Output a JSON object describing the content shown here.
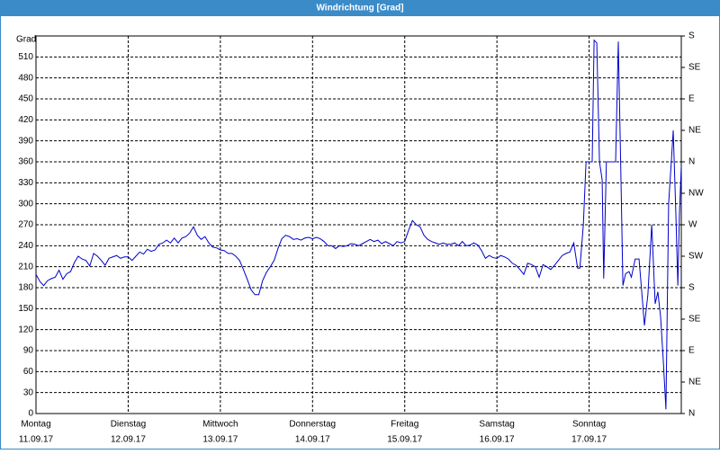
{
  "chart_data": {
    "type": "line",
    "title": "Windrichtung [Grad]",
    "ylabel": "Grad",
    "xlim": [
      0,
      168
    ],
    "ylim": [
      0,
      540
    ],
    "y2lim": [
      0,
      540
    ],
    "grid": true,
    "xticks": [
      {
        "value": 0,
        "label": "Montag",
        "date": "11.09.17"
      },
      {
        "value": 24,
        "label": "Dienstag",
        "date": "12.09.17"
      },
      {
        "value": 48,
        "label": "Mittwoch",
        "date": "13.09.17"
      },
      {
        "value": 72,
        "label": "Donnerstag",
        "date": "14.09.17"
      },
      {
        "value": 96,
        "label": "Freitag",
        "date": "15.09.17"
      },
      {
        "value": 120,
        "label": "Samstag",
        "date": "16.09.17"
      },
      {
        "value": 144,
        "label": "Sonntag",
        "date": "17.09.17"
      }
    ],
    "yticks": [
      0,
      30,
      60,
      90,
      120,
      150,
      180,
      210,
      240,
      270,
      300,
      330,
      360,
      390,
      420,
      450,
      480,
      510
    ],
    "y2ticks": [
      {
        "value": 0,
        "label": "N"
      },
      {
        "value": 45,
        "label": "NE"
      },
      {
        "value": 90,
        "label": "E"
      },
      {
        "value": 135,
        "label": "SE"
      },
      {
        "value": 180,
        "label": "S"
      },
      {
        "value": 225,
        "label": "SW"
      },
      {
        "value": 270,
        "label": "W"
      },
      {
        "value": 315,
        "label": "NW"
      },
      {
        "value": 360,
        "label": "N"
      },
      {
        "value": 405,
        "label": "NE"
      },
      {
        "value": 450,
        "label": "E"
      },
      {
        "value": 495,
        "label": "SE"
      },
      {
        "value": 540,
        "label": "S"
      }
    ],
    "x": [
      0,
      1,
      2,
      3,
      4,
      5,
      6,
      7,
      8,
      9,
      10,
      11,
      12,
      13,
      14,
      15,
      16,
      17,
      18,
      19,
      20,
      21,
      22,
      23,
      24,
      25,
      26,
      27,
      28,
      29,
      30,
      31,
      32,
      33,
      34,
      35,
      36,
      37,
      38,
      39,
      40,
      41,
      42,
      43,
      44,
      45,
      46,
      47,
      48,
      49,
      50,
      51,
      52,
      53,
      54,
      55,
      56,
      57,
      58,
      59,
      60,
      61,
      62,
      63,
      64,
      65,
      66,
      67,
      68,
      69,
      70,
      71,
      72,
      73,
      74,
      75,
      76,
      77,
      78,
      79,
      80,
      81,
      82,
      83,
      84,
      85,
      86,
      87,
      88,
      89,
      90,
      91,
      92,
      93,
      94,
      95,
      96,
      97,
      98,
      99,
      100,
      101,
      102,
      103,
      104,
      105,
      106,
      107,
      108,
      109,
      110,
      111,
      112,
      113,
      114,
      115,
      116,
      117,
      118,
      119,
      120,
      121,
      122,
      123,
      124,
      125,
      126,
      127,
      128,
      129,
      130,
      131,
      132,
      133,
      134,
      135,
      136,
      137,
      138,
      139,
      140,
      141,
      141.6,
      142.5,
      143.2,
      144.8,
      145.3,
      146,
      146.7,
      147.4,
      147.8,
      148.5,
      150.9,
      151.6,
      152.3,
      152.8,
      153.5,
      154.4,
      155,
      156,
      157,
      158,
      158.4,
      159.3,
      160.3,
      161.2,
      161.9,
      162.6,
      163.3,
      164,
      164.7,
      165.4,
      165.9,
      166.6,
      167.1,
      167.5,
      168
    ],
    "series": [
      {
        "name": "Windrichtung",
        "color": "#0000cc",
        "values": [
          199,
          189,
          183,
          190,
          193,
          195,
          205,
          192,
          200,
          203,
          216,
          225,
          221,
          219,
          211,
          229,
          225,
          219,
          212,
          222,
          224,
          226,
          222,
          224,
          224,
          219,
          225,
          231,
          228,
          235,
          232,
          234,
          242,
          244,
          248,
          244,
          251,
          244,
          251,
          253,
          258,
          267,
          255,
          249,
          253,
          244,
          238,
          237,
          234,
          233,
          229,
          229,
          225,
          219,
          206,
          192,
          177,
          170,
          170,
          190,
          202,
          210,
          219,
          236,
          250,
          255,
          253,
          249,
          250,
          248,
          251,
          252,
          250,
          252,
          250,
          246,
          240,
          240,
          236,
          240,
          239,
          240,
          243,
          242,
          240,
          243,
          246,
          249,
          246,
          248,
          243,
          246,
          243,
          240,
          246,
          244,
          246,
          262,
          276,
          270,
          267,
          255,
          249,
          246,
          244,
          242,
          244,
          242,
          242,
          244,
          240,
          246,
          240,
          241,
          244,
          241,
          233,
          222,
          226,
          223,
          222,
          226,
          224,
          221,
          215,
          212,
          206,
          199,
          215,
          213,
          210,
          195,
          213,
          210,
          206,
          212,
          219,
          226,
          229,
          231,
          244,
          208,
          208,
          270,
          360,
          360,
          534,
          530,
          360,
          334,
          193,
          360,
          360,
          532,
          334,
          183,
          200,
          203,
          195,
          221,
          221,
          154,
          126,
          170,
          270,
          157,
          174,
          139,
          77,
          6,
          300,
          360,
          405,
          283,
          183,
          283,
          354
        ]
      }
    ]
  }
}
